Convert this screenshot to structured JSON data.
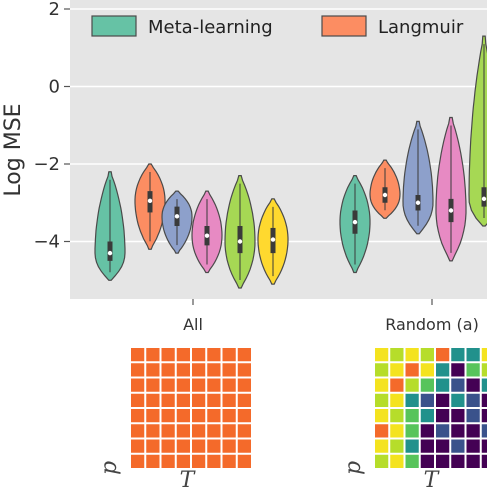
{
  "chart_data": {
    "type": "violin",
    "ylabel": "Log MSE",
    "ylim": [
      -5.5,
      2.3
    ],
    "yticks": [
      {
        "value": 2,
        "label": "2"
      },
      {
        "value": 0,
        "label": "0"
      },
      {
        "value": -2,
        "label": "−2"
      },
      {
        "value": -4,
        "label": "−4"
      }
    ],
    "grid": true,
    "legend_position": "top",
    "legend": [
      {
        "name": "Meta-learning",
        "color": "#66c2a5"
      },
      {
        "name": "Langmuir",
        "color": "#fc8d62"
      }
    ],
    "groups": [
      {
        "label": "All",
        "violins": [
          {
            "color": "#66c2a5",
            "min": -5.0,
            "q1": -4.5,
            "median": -4.3,
            "q3": -4.0,
            "max": -2.2
          },
          {
            "color": "#fc8d62",
            "min": -4.2,
            "q1": -3.25,
            "median": -2.95,
            "q3": -2.7,
            "max": -2.0
          },
          {
            "color": "#8da0cb",
            "min": -4.3,
            "q1": -3.6,
            "median": -3.35,
            "q3": -3.1,
            "max": -2.7
          },
          {
            "color": "#e78ac3",
            "min": -4.8,
            "q1": -4.1,
            "median": -3.85,
            "q3": -3.6,
            "max": -2.7
          },
          {
            "color": "#a6d854",
            "min": -5.2,
            "q1": -4.3,
            "median": -4.0,
            "q3": -3.6,
            "max": -2.3
          },
          {
            "color": "#ffd92f",
            "min": -5.1,
            "q1": -4.3,
            "median": -3.95,
            "q3": -3.65,
            "max": -2.9
          }
        ]
      },
      {
        "label": "Random (a)",
        "violins": [
          {
            "color": "#66c2a5",
            "min": -4.8,
            "q1": -3.8,
            "median": -3.5,
            "q3": -3.2,
            "max": -2.3
          },
          {
            "color": "#fc8d62",
            "min": -3.4,
            "q1": -3.0,
            "median": -2.8,
            "q3": -2.6,
            "max": -1.9
          },
          {
            "color": "#8da0cb",
            "min": -3.8,
            "q1": -3.2,
            "median": -3.0,
            "q3": -2.8,
            "max": -0.9
          },
          {
            "color": "#e78ac3",
            "min": -4.5,
            "q1": -3.5,
            "median": -3.2,
            "q3": -2.9,
            "max": -0.8
          },
          {
            "color": "#a6d854",
            "min": -3.6,
            "q1": -3.1,
            "median": -2.9,
            "q3": -2.6,
            "max": 1.3
          }
        ]
      }
    ]
  },
  "panels": [
    {
      "ylabel": "p",
      "xlabel": "T",
      "kind": "uniform",
      "color": "#f46a2a",
      "rows": 8,
      "cols": 8
    },
    {
      "ylabel": "p",
      "xlabel": "T",
      "kind": "heatmap",
      "rows": 8,
      "cols": 8,
      "colors": {
        "yellow": "#f4e31f",
        "lime": "#b6dd2a",
        "green": "#57c45b",
        "teal": "#21918c",
        "blue": "#3a528b",
        "purple": "#440154",
        "orange": "#f46a2a"
      },
      "cells": [
        [
          "yellow",
          "lime",
          "yellow",
          "lime",
          "orange",
          "teal",
          "teal",
          "yellow"
        ],
        [
          "lime",
          "yellow",
          "orange",
          "yellow",
          "teal",
          "purple",
          "green",
          "lime"
        ],
        [
          "yellow",
          "orange",
          "lime",
          "green",
          "teal",
          "blue",
          "purple",
          "teal"
        ],
        [
          "lime",
          "yellow",
          "teal",
          "blue",
          "purple",
          "teal",
          "blue",
          "purple"
        ],
        [
          "yellow",
          "lime",
          "green",
          "teal",
          "purple",
          "purple",
          "blue",
          "purple"
        ],
        [
          "orange",
          "yellow",
          "green",
          "purple",
          "blue",
          "purple",
          "purple",
          "blue"
        ],
        [
          "yellow",
          "lime",
          "teal",
          "purple",
          "purple",
          "blue",
          "purple",
          "purple"
        ],
        [
          "lime",
          "yellow",
          "green",
          "purple",
          "purple",
          "purple",
          "purple",
          "purple"
        ]
      ]
    }
  ]
}
